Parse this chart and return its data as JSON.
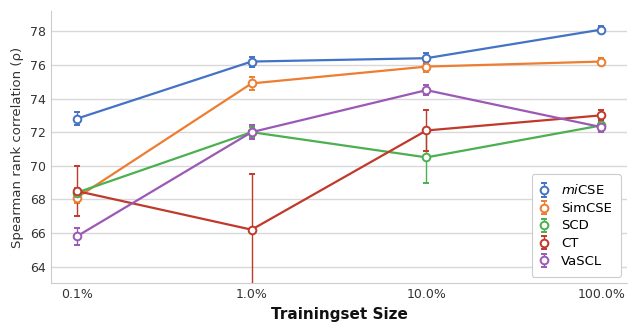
{
  "x_labels": [
    "0.1%",
    "1.0%",
    "10.0%",
    "100.0%"
  ],
  "x_values": [
    0,
    1,
    2,
    3
  ],
  "series": {
    "miCSE": {
      "y": [
        72.8,
        76.2,
        76.4,
        78.1
      ],
      "yerr": [
        0.4,
        0.3,
        0.3,
        0.2
      ],
      "color": "#4472C4",
      "label": "miCSE"
    },
    "SimCSE": {
      "y": [
        68.1,
        74.9,
        75.9,
        76.2
      ],
      "yerr": [
        0.3,
        0.4,
        0.3,
        0.2
      ],
      "color": "#ED7D31",
      "label": "SimCSE"
    },
    "SCD": {
      "y": [
        68.4,
        72.0,
        70.5,
        72.4
      ],
      "yerr": [
        0.3,
        0.3,
        1.5,
        0.3
      ],
      "color": "#4CAF50",
      "label": "SCD"
    },
    "CT": {
      "y": [
        68.5,
        66.2,
        72.1,
        73.0
      ],
      "yerr": [
        1.5,
        3.3,
        1.2,
        0.3
      ],
      "color": "#C0392B",
      "label": "CT"
    },
    "VaSCL": {
      "y": [
        65.8,
        72.0,
        74.5,
        72.3
      ],
      "yerr": [
        0.5,
        0.4,
        0.3,
        0.3
      ],
      "color": "#9B59B6",
      "label": "VaSCL"
    }
  },
  "ylabel": "Spearman rank correlation (ρ)",
  "xlabel": "Trainingset Size",
  "ylim": [
    63.0,
    79.2
  ],
  "yticks": [
    64,
    66,
    68,
    70,
    72,
    74,
    76,
    78
  ],
  "background_color": "#ffffff",
  "grid_color": "#d8d8d8",
  "legend_labels_order": [
    "miCSE",
    "SimCSE",
    "SCD",
    "CT",
    "VaSCL"
  ]
}
